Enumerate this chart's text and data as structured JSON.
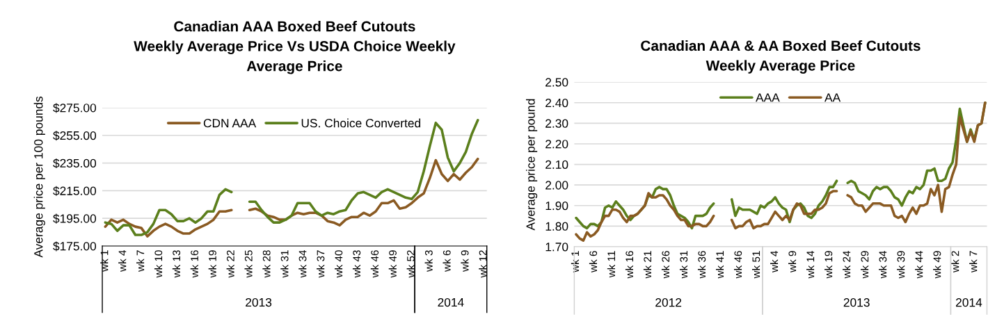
{
  "chart_data": [
    {
      "type": "line",
      "title": "Canadian AAA Boxed Beef Cutouts\nWeekly Average Price Vs USDA Choice Weekly\nAverage Price",
      "ylabel": "Average price per 100 pounds",
      "categories": [
        "wk 1",
        null,
        null,
        "wk 4",
        null,
        null,
        "wk 7",
        null,
        null,
        "wk 10",
        null,
        null,
        "wk 13",
        null,
        null,
        "wk 16",
        null,
        null,
        "wk 19",
        null,
        null,
        "wk 22",
        null,
        null,
        "wk 25",
        null,
        null,
        "wk 28",
        null,
        null,
        "wk 31",
        null,
        null,
        "wk 34",
        null,
        null,
        "wk 37",
        null,
        null,
        "wk 40",
        null,
        null,
        "wk 43",
        null,
        null,
        "wk 46",
        null,
        null,
        "wk 49",
        null,
        null,
        "wk 52",
        null,
        null,
        "wk 3",
        null,
        null,
        "wk 6",
        null,
        null,
        "wk 9",
        null,
        null,
        "wk 12"
      ],
      "series": [
        {
          "name": "CDN AAA",
          "color": "#8a5a22",
          "values": [
            189,
            194,
            192,
            194,
            191,
            189,
            188,
            182,
            186,
            189,
            191,
            189,
            186,
            184,
            184,
            187,
            189,
            191,
            194,
            200,
            200,
            201,
            null,
            null,
            201,
            202,
            200,
            197,
            196,
            194,
            194,
            197,
            199,
            198,
            199,
            199,
            197,
            193,
            192,
            190,
            194,
            196,
            196,
            199,
            197,
            200,
            206,
            206,
            208,
            202,
            203,
            206,
            210,
            213,
            224,
            237,
            227,
            222,
            227,
            223,
            228,
            232,
            238,
            null
          ]
        },
        {
          "name": "US. Choice Converted",
          "color": "#5b7f1c",
          "values": [
            192,
            191,
            186,
            190,
            190,
            183,
            183,
            185,
            191,
            201,
            201,
            198,
            193,
            193,
            195,
            192,
            195,
            200,
            200,
            212,
            216,
            214,
            null,
            null,
            207,
            207,
            201,
            196,
            192,
            192,
            194,
            197,
            206,
            206,
            206,
            200,
            197,
            199,
            198,
            200,
            201,
            208,
            213,
            214,
            212,
            210,
            214,
            216,
            214,
            212,
            210,
            209,
            214,
            229,
            247,
            264,
            259,
            239,
            229,
            235,
            243,
            256,
            266,
            null
          ]
        }
      ],
      "ylim": [
        175,
        275
      ],
      "yticks": [
        {
          "value": 175,
          "label": "$175.00"
        },
        {
          "value": 195,
          "label": "$195.00"
        },
        {
          "value": 215,
          "label": "$215.00"
        },
        {
          "value": 235,
          "label": "$235.00"
        },
        {
          "value": 255,
          "label": "$255.00"
        },
        {
          "value": 275,
          "label": "$275.00"
        }
      ],
      "annotations": [
        "2013",
        "2014"
      ],
      "grid": "y",
      "legend": "top",
      "marker": "none",
      "line_style": "solid"
    },
    {
      "type": "line",
      "title": "Canadian AAA & AA Boxed Beef Cutouts\nWeekly Average Price",
      "ylabel": "Average price per pound",
      "categories": [
        "wk 1",
        null,
        null,
        null,
        null,
        "wk 6",
        null,
        null,
        null,
        null,
        "wk 11",
        null,
        null,
        null,
        null,
        "wk 16",
        null,
        null,
        null,
        null,
        "wk 21",
        null,
        null,
        null,
        null,
        "wk 26",
        null,
        null,
        null,
        null,
        "wk 31",
        null,
        null,
        null,
        null,
        "wk 36",
        null,
        null,
        null,
        null,
        "wk 41",
        null,
        null,
        null,
        null,
        "wk 46",
        null,
        null,
        null,
        null,
        "wk 51",
        null,
        null,
        null,
        null,
        "wk 4",
        null,
        null,
        null,
        null,
        "wk 9",
        null,
        null,
        null,
        null,
        "wk 14",
        null,
        null,
        null,
        null,
        "wk 19",
        null,
        null,
        null,
        null,
        "wk 24",
        null,
        null,
        null,
        null,
        "wk 29",
        null,
        null,
        null,
        null,
        "wk 34",
        null,
        null,
        null,
        null,
        "wk 39",
        null,
        null,
        null,
        null,
        "wk 44",
        null,
        null,
        null,
        null,
        "wk 49",
        null,
        null,
        null,
        null,
        "wk 2",
        null,
        null,
        null,
        null,
        "wk 7",
        null,
        null,
        null
      ],
      "series": [
        {
          "name": "AAA",
          "color": "#5b7f1c",
          "values": [
            1.84,
            1.82,
            1.8,
            1.79,
            1.81,
            1.81,
            1.8,
            1.82,
            1.89,
            1.9,
            1.89,
            1.92,
            1.9,
            1.88,
            1.85,
            1.83,
            1.85,
            1.86,
            1.88,
            1.9,
            1.95,
            1.94,
            1.98,
            1.99,
            1.98,
            1.98,
            1.95,
            1.9,
            1.86,
            1.85,
            1.84,
            1.82,
            1.79,
            1.85,
            1.85,
            1.85,
            1.86,
            1.89,
            1.91,
            null,
            null,
            null,
            null,
            1.93,
            1.85,
            1.89,
            1.88,
            1.88,
            1.88,
            1.87,
            1.86,
            1.9,
            1.89,
            1.91,
            1.92,
            1.94,
            1.91,
            1.89,
            1.88,
            1.82,
            1.88,
            1.9,
            1.91,
            1.89,
            1.85,
            1.84,
            1.86,
            1.9,
            1.92,
            1.95,
            1.99,
            1.99,
            2.02,
            null,
            null,
            2.01,
            2.02,
            2.01,
            1.97,
            1.96,
            1.95,
            1.93,
            1.97,
            1.99,
            1.98,
            1.99,
            1.99,
            1.97,
            1.94,
            1.93,
            1.9,
            1.94,
            1.97,
            1.96,
            1.99,
            1.98,
            2.0,
            2.07,
            2.07,
            2.08,
            2.02,
            2.02,
            2.03,
            2.08,
            2.11,
            2.22,
            2.37,
            2.29,
            2.21,
            2.27,
            2.22,
            2.29,
            2.3,
            2.4
          ]
        },
        {
          "name": "AA",
          "color": "#8a5a22",
          "values": [
            1.76,
            1.74,
            1.73,
            1.77,
            1.75,
            1.76,
            1.78,
            1.82,
            1.85,
            1.85,
            1.88,
            1.88,
            1.87,
            1.84,
            1.82,
            1.85,
            1.85,
            1.86,
            1.88,
            1.9,
            1.96,
            1.94,
            1.94,
            1.95,
            1.95,
            1.93,
            1.9,
            1.88,
            1.85,
            1.83,
            1.83,
            1.8,
            1.8,
            1.81,
            1.81,
            1.8,
            1.8,
            1.82,
            1.85,
            null,
            null,
            null,
            null,
            1.83,
            1.79,
            1.8,
            1.8,
            1.82,
            1.83,
            1.79,
            1.8,
            1.8,
            1.81,
            1.81,
            1.84,
            1.87,
            1.85,
            1.83,
            1.85,
            1.83,
            1.88,
            1.91,
            1.9,
            1.86,
            1.86,
            1.86,
            1.88,
            1.88,
            1.89,
            1.91,
            1.96,
            1.97,
            1.97,
            null,
            null,
            1.95,
            1.94,
            1.91,
            1.9,
            1.9,
            1.87,
            1.89,
            1.91,
            1.91,
            1.91,
            1.9,
            1.9,
            1.9,
            1.85,
            1.84,
            1.85,
            1.82,
            1.86,
            1.89,
            1.86,
            1.9,
            1.9,
            1.91,
            1.98,
            1.95,
            2.0,
            1.87,
            1.98,
            1.99,
            2.05,
            2.1,
            2.33,
            2.27,
            2.21,
            2.26,
            2.21,
            2.29,
            2.3,
            2.4
          ]
        }
      ],
      "ylim": [
        1.7,
        2.5
      ],
      "yticks": [
        {
          "value": 1.7,
          "label": "1.70"
        },
        {
          "value": 1.8,
          "label": "1.80"
        },
        {
          "value": 1.9,
          "label": "1.90"
        },
        {
          "value": 2.0,
          "label": "2.00"
        },
        {
          "value": 2.1,
          "label": "2.10"
        },
        {
          "value": 2.2,
          "label": "2.20"
        },
        {
          "value": 2.3,
          "label": "2.30"
        },
        {
          "value": 2.4,
          "label": "2.40"
        },
        {
          "value": 2.5,
          "label": "2.50"
        }
      ],
      "annotations": [
        "2012",
        "2013",
        "2014"
      ],
      "grid": "y",
      "legend": "top",
      "marker": "none",
      "line_style": "solid"
    }
  ]
}
